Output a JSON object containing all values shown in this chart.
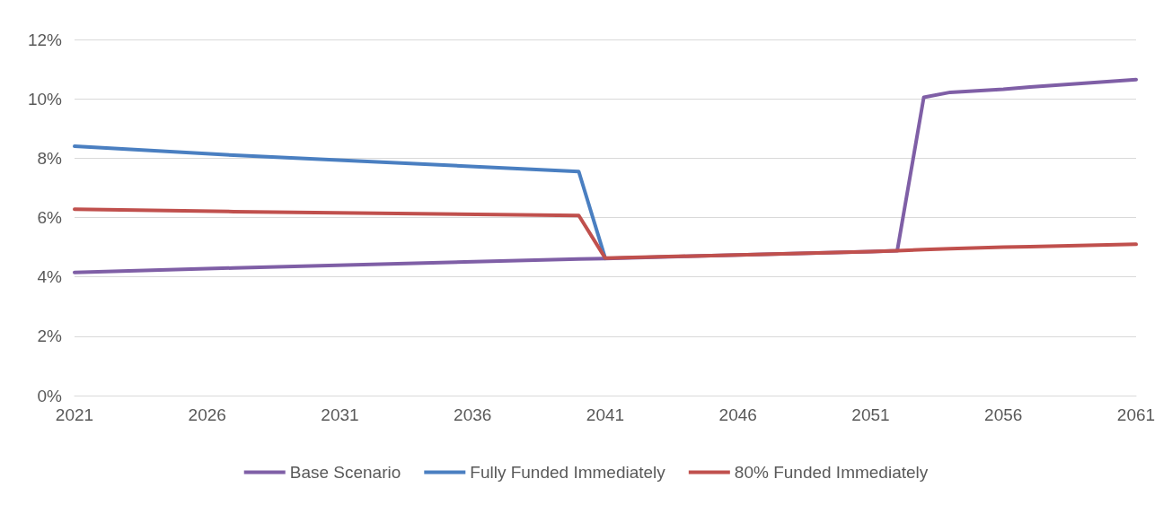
{
  "chart_data": {
    "type": "line",
    "x": [
      2021,
      2027,
      2040,
      2041,
      2046,
      2051,
      2052,
      2053,
      2054,
      2056,
      2057,
      2061
    ],
    "series": [
      {
        "name": "Base Scenario",
        "color": "#7f5fa6",
        "values": [
          4.15,
          4.3,
          4.6,
          4.62,
          4.74,
          4.85,
          4.88,
          10.05,
          10.22,
          10.32,
          10.4,
          10.65
        ]
      },
      {
        "name": "Fully Funded Immediately",
        "color": "#4a7fc1",
        "values": [
          8.4,
          8.1,
          7.55,
          4.62,
          null,
          null,
          null,
          null,
          null,
          null,
          null,
          null
        ]
      },
      {
        "name": "80% Funded Immediately",
        "color": "#c0504d",
        "values": [
          6.28,
          6.2,
          6.07,
          4.63,
          4.74,
          4.85,
          4.88,
          4.92,
          4.95,
          5.0,
          5.02,
          5.1
        ]
      }
    ],
    "xlim": [
      2021,
      2061
    ],
    "xticks": [
      2021,
      2026,
      2031,
      2036,
      2041,
      2046,
      2051,
      2056,
      2061
    ],
    "ylim": [
      0,
      12
    ],
    "yticks": [
      {
        "value": 0,
        "label": "0%"
      },
      {
        "value": 2,
        "label": "2%"
      },
      {
        "value": 4,
        "label": "4%"
      },
      {
        "value": 6,
        "label": "6%"
      },
      {
        "value": 8,
        "label": "8%"
      },
      {
        "value": 10,
        "label": "10%"
      },
      {
        "value": 12,
        "label": "12%"
      }
    ],
    "grid": "y",
    "legend": "bottom",
    "marker": "none",
    "line_style": "solid"
  }
}
